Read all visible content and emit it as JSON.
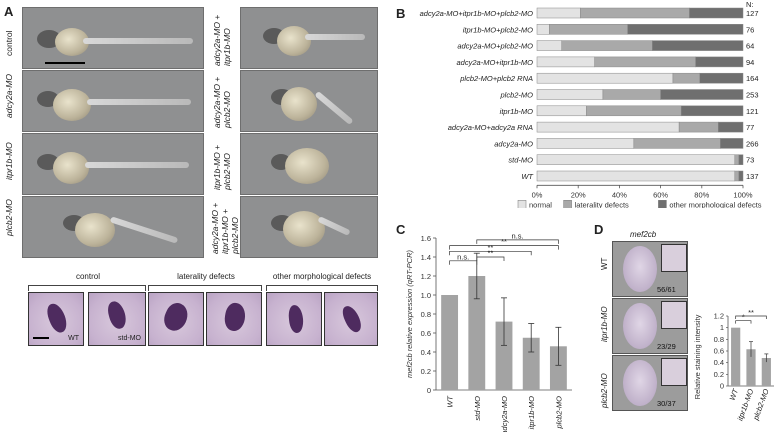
{
  "panel_labels": {
    "a": "A",
    "b": "B",
    "c": "C",
    "d": "D"
  },
  "panel_a": {
    "left_rows": [
      "control",
      "adcy2a-MO",
      "itpr1b-MO",
      "plcb2-MO"
    ],
    "right_rows": [
      "adcy2a-MO + itpr1b-MO",
      "adcy2a-MO + plcb2-MO",
      "itpr1b-MO + plcb2-MO",
      "adcy2a-MO + itpr1b-MO + plcb2-MO"
    ],
    "heart_groups": [
      "control",
      "laterality defects",
      "other morphological defects"
    ],
    "heart_tile_labels": [
      "WT",
      "std-MO"
    ]
  },
  "chart_data": [
    {
      "type": "bar",
      "orientation": "horizontal-stacked-percent",
      "panel": "B",
      "categories": [
        "adcy2a-MO+itpr1b-MO+plcb2-MO",
        "itpr1b-MO+plcb2-MO",
        "adcy2a-MO+plcb2-MO",
        "adcy2a-MO+itpr1b-MO",
        "plcb2-MO+plcb2 RNA",
        "plcb2-MO",
        "itpr1b-MO",
        "adcy2a-MO+adcy2a RNA",
        "adcy2a-MO",
        "std-MO",
        "WT"
      ],
      "n_header": "N:",
      "n_values": [
        127,
        76,
        64,
        94,
        164,
        253,
        121,
        77,
        266,
        73,
        137
      ],
      "series": [
        {
          "name": "normal",
          "color": "#e3e3e3",
          "values": [
            21,
            6,
            12,
            28,
            66,
            32,
            24,
            69,
            47,
            96,
            96
          ]
        },
        {
          "name": "laterality defects",
          "color": "#a9a9a9",
          "values": [
            53,
            38,
            44,
            49,
            13,
            28,
            46,
            19,
            42,
            2,
            2
          ]
        },
        {
          "name": "other morphological defects",
          "color": "#6f6f6f",
          "values": [
            26,
            56,
            44,
            23,
            21,
            40,
            30,
            12,
            11,
            2,
            2
          ]
        }
      ],
      "xticks": [
        "0%",
        "20%",
        "40%",
        "60%",
        "80%",
        "100%"
      ],
      "xlim": [
        0,
        100
      ]
    },
    {
      "type": "bar",
      "panel": "C",
      "categories": [
        "WT",
        "std-MO",
        "adcy2a-MO",
        "itpr1b-MO",
        "plcb2-MO"
      ],
      "values": [
        1.0,
        1.2,
        0.72,
        0.55,
        0.46
      ],
      "errors": [
        0,
        0.24,
        0.25,
        0.15,
        0.2
      ],
      "ylabel": "mef2cb relative expression (qRT-PCR)",
      "ylim": [
        0,
        1.6
      ],
      "yticks": [
        "0",
        "0.2",
        "0.4",
        "0.6",
        "0.8",
        "1.0",
        "1.2",
        "1.4",
        "1.6"
      ],
      "significance": [
        "n.s.",
        "**",
        "**",
        "**",
        "n.s."
      ],
      "color": "#a3a3a3"
    },
    {
      "type": "bar",
      "panel": "D",
      "categories": [
        "WT",
        "itpr1b-MO",
        "plcb2-MO"
      ],
      "values": [
        1.0,
        0.63,
        0.48
      ],
      "errors": [
        0,
        0.13,
        0.07
      ],
      "ylabel": "Relative staining intensity",
      "ylim": [
        0,
        1.2
      ],
      "yticks": [
        "0",
        "0.2",
        "0.4",
        "0.6",
        "0.8",
        "1",
        "1.2"
      ],
      "significance": [
        "*",
        "**"
      ],
      "color": "#a3a3a3"
    }
  ],
  "panel_d": {
    "title": "mef2cb",
    "rows": [
      {
        "label": "WT",
        "count": "56/61"
      },
      {
        "label": "itpr1b-MO",
        "count": "23/29"
      },
      {
        "label": "plcb2-MO",
        "count": "30/37"
      }
    ]
  }
}
